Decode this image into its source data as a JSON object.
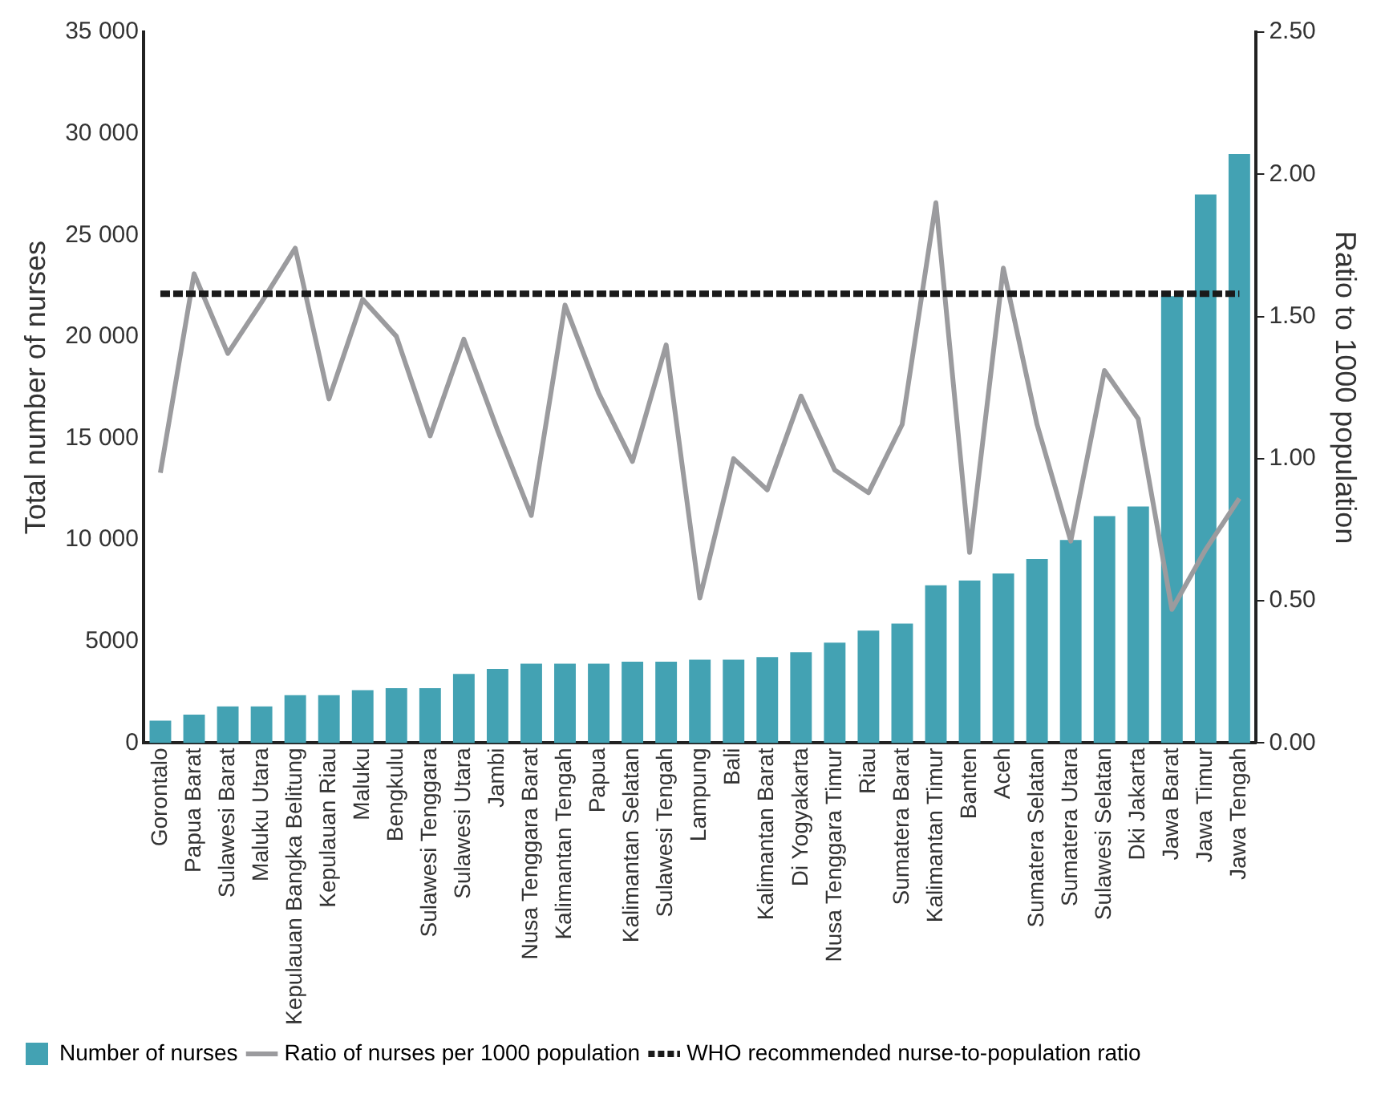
{
  "chart_data": {
    "type": "bar",
    "ylabel": "Total number of nurses",
    "y2label": "Ratio to 1000 population",
    "categories": [
      "Gorontalo",
      "Papua Barat",
      "Sulawesi Barat",
      "Maluku Utara",
      "Kepulauan Bangka Belitung",
      "Kepulauan Riau",
      "Maluku",
      "Bengkulu",
      "Sulawesi Tenggara",
      "Sulawesi Utara",
      "Jambi",
      "Nusa Tenggara Barat",
      "Kalimantan Tengah",
      "Papua",
      "Kalimantan Selatan",
      "Sulawesi Tengah",
      "Lampung",
      "Bali",
      "Kalimantan Barat",
      "Di Yogyakarta",
      "Nusa Tenggara Timur",
      "Riau",
      "Sumatera Barat",
      "Kalimantan Timur",
      "Banten",
      "Aceh",
      "Sumatera Selatan",
      "Sumatera Utara",
      "Sulawesi Selatan",
      "Dki Jakarta",
      "Jawa Barat",
      "Jawa Timur",
      "Jawa Tengah"
    ],
    "series": [
      {
        "name": "Number of nurses",
        "color": "#43a2b3",
        "values": [
          1100,
          1400,
          1800,
          1800,
          2350,
          2350,
          2600,
          2700,
          2700,
          3400,
          3650,
          3900,
          3900,
          3900,
          4000,
          4000,
          4100,
          4100,
          4230,
          4470,
          4940,
          5530,
          5880,
          7760,
          8000,
          8350,
          9060,
          10000,
          11170,
          11640,
          22000,
          27000,
          29000
        ]
      },
      {
        "name": "Ratio of nurses per 1000 population",
        "type": "line",
        "axis": "y2",
        "color": "#9b9b9e",
        "marker": "none",
        "line_style": "solid",
        "values": [
          0.95,
          1.65,
          1.37,
          1.55,
          1.74,
          1.21,
          1.56,
          1.43,
          1.08,
          1.42,
          1.1,
          0.8,
          1.54,
          1.23,
          0.99,
          1.4,
          0.51,
          1.0,
          0.89,
          1.22,
          0.96,
          0.88,
          1.12,
          1.9,
          0.67,
          1.67,
          1.12,
          0.71,
          1.31,
          1.14,
          0.47,
          0.68,
          0.86
        ]
      }
    ],
    "ylim": [
      0,
      35000
    ],
    "yticks": [
      0,
      5000,
      {
        "value": 10000,
        "label": "10 000"
      },
      {
        "value": 15000,
        "label": "15 000"
      },
      {
        "value": 20000,
        "label": "20 000"
      },
      {
        "value": 25000,
        "label": "25 000"
      },
      {
        "value": 30000,
        "label": "30 000"
      },
      {
        "value": 35000,
        "label": "35 000"
      }
    ],
    "y2lim": [
      0,
      2.5
    ],
    "y2ticks": [
      {
        "value": 0,
        "label": "0.00"
      },
      {
        "value": 0.5,
        "label": "0.50"
      },
      {
        "value": 1,
        "label": "1.00"
      },
      {
        "value": 1.5,
        "label": "1.50"
      },
      {
        "value": 2,
        "label": "2.00"
      },
      {
        "value": 2.5,
        "label": "2.50"
      }
    ],
    "ref_lines": [
      {
        "axis": "y2",
        "value": 1.58,
        "label": "WHO recommended nurse-to-population ratio",
        "color": "#1a1a1a",
        "line_style": "dashed"
      }
    ],
    "grid": false,
    "legend": "bottom"
  }
}
